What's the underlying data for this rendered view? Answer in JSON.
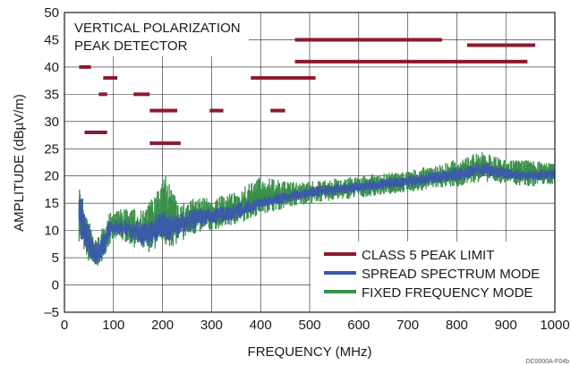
{
  "chart_data": {
    "type": "line",
    "xlabel": "FREQUENCY (MHz)",
    "ylabel": "AMPLITUDE (dBµV/m)",
    "xlim": [
      0,
      1000
    ],
    "ylim": [
      -5,
      50
    ],
    "x_ticks": [
      0,
      100,
      200,
      300,
      400,
      500,
      600,
      700,
      800,
      900,
      1000
    ],
    "y_ticks": [
      -5,
      0,
      5,
      10,
      15,
      20,
      25,
      30,
      35,
      40,
      45,
      50
    ],
    "x_tick_labels": [
      "0",
      "100",
      "200",
      "300",
      "400",
      "500",
      "600",
      "700",
      "800",
      "900",
      "1000"
    ],
    "y_tick_labels": [
      "–5",
      "0",
      "5",
      "10",
      "15",
      "20",
      "25",
      "30",
      "35",
      "40",
      "45",
      "50"
    ],
    "grid": true,
    "legend_position": "bottom-right",
    "annotation_lines": [
      "VERTICAL POLARIZATION",
      "PEAK DETECTOR"
    ],
    "corner_code": "DC0000A-F04b",
    "series": [
      {
        "name": "CLASS 5 PEAK LIMIT",
        "color": "#8b1a2e",
        "style": "segments",
        "segments": [
          {
            "x": [
              30,
              54
            ],
            "y": 40
          },
          {
            "x": [
              41,
              87
            ],
            "y": 28
          },
          {
            "x": [
              70,
              87
            ],
            "y": 35
          },
          {
            "x": [
              79,
              108
            ],
            "y": 38
          },
          {
            "x": [
              141,
              174
            ],
            "y": 35
          },
          {
            "x": [
              174,
              237
            ],
            "y": 26
          },
          {
            "x": [
              174,
              230
            ],
            "y": 32
          },
          {
            "x": [
              296,
              324
            ],
            "y": 32
          },
          {
            "x": [
              380,
              512
            ],
            "y": 38
          },
          {
            "x": [
              420,
              450
            ],
            "y": 32
          },
          {
            "x": [
              470,
              770
            ],
            "y": 45
          },
          {
            "x": [
              470,
              944
            ],
            "y": 41
          },
          {
            "x": [
              821,
              960
            ],
            "y": 44
          }
        ]
      },
      {
        "name": "SPREAD SPECTRUM MODE",
        "color": "#3b5aa8",
        "style": "noise-band",
        "envelope_x": [
          30,
          40,
          50,
          60,
          70,
          80,
          90,
          100,
          120,
          140,
          160,
          180,
          200,
          210,
          220,
          240,
          260,
          300,
          350,
          400,
          450,
          500,
          600,
          700,
          800,
          850,
          900,
          950,
          1000
        ],
        "envelope_low": [
          9,
          7,
          5,
          3.5,
          4,
          5.5,
          8,
          9,
          9,
          8,
          7,
          7,
          9,
          8,
          8,
          9,
          10,
          11,
          12,
          14,
          15,
          16,
          17,
          18,
          19,
          20,
          19.5,
          19,
          19.5
        ],
        "envelope_high": [
          18,
          14,
          11,
          8,
          8,
          10,
          12,
          12,
          12,
          12,
          11.5,
          12,
          14,
          13,
          13,
          13,
          14,
          14,
          15,
          16,
          17,
          18,
          19,
          20,
          21.5,
          22.5,
          21.5,
          21,
          21.5
        ]
      },
      {
        "name": "FIXED FREQUENCY MODE",
        "color": "#3a8f4a",
        "style": "noise-band",
        "envelope_x": [
          30,
          40,
          50,
          60,
          70,
          80,
          90,
          100,
          120,
          140,
          160,
          180,
          200,
          210,
          220,
          240,
          260,
          300,
          350,
          400,
          450,
          500,
          600,
          700,
          800,
          850,
          900,
          950,
          1000
        ],
        "envelope_low": [
          8,
          6,
          4,
          3,
          3.5,
          5,
          7,
          8,
          8,
          7,
          6,
          6,
          8,
          6.5,
          7,
          8,
          9,
          10,
          11,
          13,
          14,
          15,
          16,
          17,
          18,
          19,
          18.5,
          18,
          18.5
        ],
        "envelope_high": [
          19,
          15,
          12,
          9,
          9,
          11,
          13,
          14,
          14,
          14,
          14,
          16,
          19,
          21,
          17,
          15,
          16,
          16,
          17,
          20,
          19,
          19,
          20,
          21,
          23,
          24.5,
          23,
          23,
          22.5
        ]
      }
    ]
  }
}
